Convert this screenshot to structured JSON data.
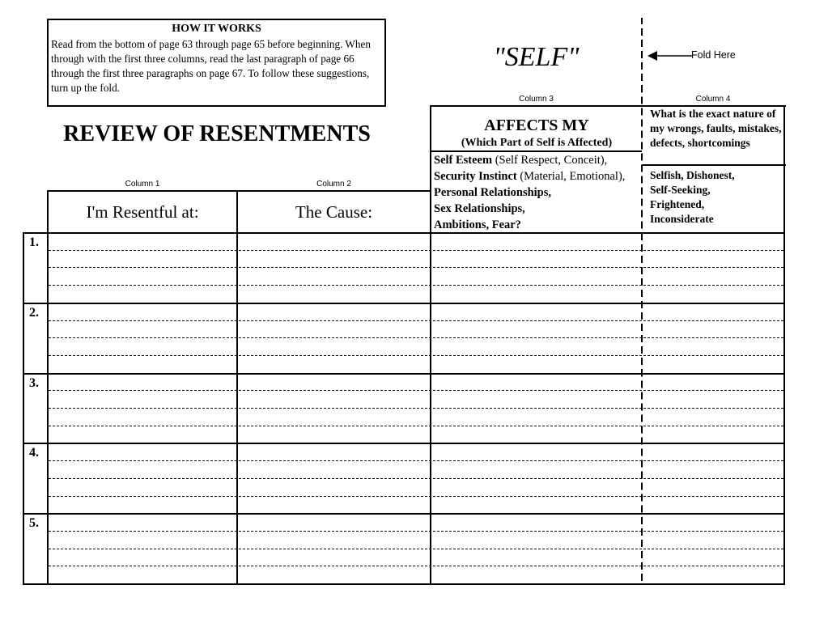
{
  "how_it_works": {
    "title": "HOW IT WORKS",
    "body": "Read from the bottom of page 63 through page 65 before beginning. When through with the first three columns, read the last paragraph of page 66 through the first three paragraphs on page 67.  To follow these suggestions, turn up the fold."
  },
  "title": "REVIEW OF RESENTMENTS",
  "self_heading": "\"SELF\"",
  "fold_label": "Fold Here",
  "columns": [
    {
      "label": "Column 1",
      "header": "I'm Resentful at:"
    },
    {
      "label": "Column 2",
      "header": "The Cause:"
    },
    {
      "label": "Column 3",
      "header": "AFFECTS MY",
      "subheader": "(Which Part of Self is Affected)",
      "items": [
        {
          "bold": "Self Esteem",
          "normal": " (Self Respect, Conceit),"
        },
        {
          "bold": "Security Instinct",
          "normal": " (Material, Emotional),"
        },
        {
          "bold": "Personal Relationships,",
          "normal": ""
        },
        {
          "bold": "Sex Relationships,",
          "normal": ""
        },
        {
          "bold": "Ambitions, Fear?",
          "normal": ""
        }
      ]
    },
    {
      "label": "Column 4",
      "question": "What is the exact nature of my wrongs, faults, mistakes, defects, shortcomings",
      "examples": [
        "Selfish, Dishonest,",
        "Self-Seeking,",
        "Frightened,",
        "Inconsiderate"
      ]
    }
  ],
  "rows": [
    "1.",
    "2.",
    "3.",
    "4.",
    "5."
  ]
}
